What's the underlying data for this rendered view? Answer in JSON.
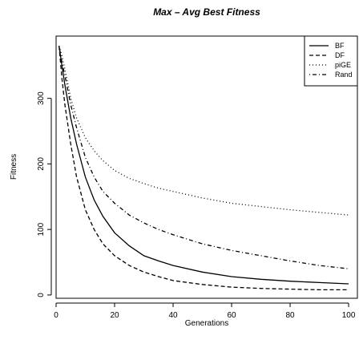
{
  "chart_data": {
    "type": "line",
    "title": "Max – Avg Best Fitness",
    "xlabel": "Generations",
    "ylabel": "Fitness",
    "xlim": [
      0,
      103
    ],
    "ylim": [
      -5,
      395
    ],
    "xticks": [
      0,
      20,
      40,
      60,
      80,
      100
    ],
    "yticks": [
      0,
      100,
      200,
      300
    ],
    "grid": false,
    "legend_position": "top-right",
    "x": [
      1,
      2,
      3,
      5,
      7,
      10,
      13,
      16,
      20,
      25,
      30,
      35,
      40,
      50,
      60,
      70,
      80,
      90,
      100
    ],
    "series": [
      {
        "name": "BF",
        "line_style": "solid",
        "values": [
          380,
          350,
          320,
          270,
          230,
          180,
          145,
          120,
          95,
          75,
          60,
          52,
          45,
          35,
          28,
          24,
          21,
          19,
          17
        ]
      },
      {
        "name": "DF",
        "line_style": "dashed",
        "values": [
          380,
          330,
          290,
          230,
          180,
          130,
          100,
          78,
          60,
          45,
          35,
          28,
          22,
          16,
          12,
          10,
          9,
          8,
          8
        ]
      },
      {
        "name": "piGE",
        "line_style": "dotted",
        "values": [
          380,
          365,
          345,
          300,
          270,
          240,
          220,
          205,
          190,
          178,
          170,
          163,
          158,
          148,
          140,
          135,
          130,
          126,
          122
        ]
      },
      {
        "name": "Rand",
        "line_style": "dashdot",
        "values": [
          380,
          355,
          335,
          290,
          255,
          210,
          180,
          158,
          140,
          122,
          110,
          100,
          92,
          78,
          68,
          60,
          52,
          45,
          40
        ]
      }
    ]
  }
}
